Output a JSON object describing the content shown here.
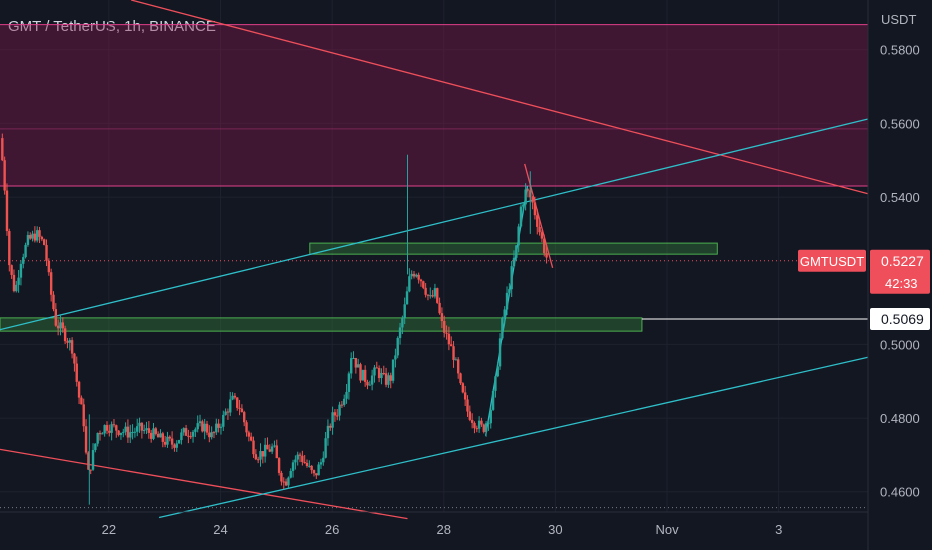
{
  "chart_data": {
    "type": "candlestick",
    "title": "GMT / TetherUS, 1h, BINANCE",
    "price_unit": "USDT",
    "y_ticks": [
      0.58,
      0.56,
      0.54,
      0.5,
      0.48,
      0.46
    ],
    "y_tick_labels": [
      "0.5800",
      "0.5600",
      "0.5400",
      "0.5000",
      "0.4800",
      "0.4600"
    ],
    "ylim": [
      0.4545,
      0.5935
    ],
    "x_tick_labels": [
      "22",
      "24",
      "26",
      "28",
      "30",
      "Nov",
      "3"
    ],
    "x_tick_days": [
      22,
      24,
      26,
      28,
      30,
      32,
      34
    ],
    "xlim_days": [
      20.05,
      35.6
    ],
    "symbol_label": "GMTUSDT",
    "last_price": 0.5227,
    "last_price_label": "0.5227",
    "countdown_label": "42:33",
    "level_price": 0.5069,
    "level_price_label": "0.5069",
    "supply_zone": {
      "top": 0.5868,
      "bottom": 0.543
    },
    "supply_mid_line": 0.5585,
    "resistance_box": {
      "from_day": 25.6,
      "to_day": 32.9,
      "top": 0.5275,
      "bottom": 0.5245
    },
    "support_box": {
      "from_day": 20.05,
      "to_day": 31.55,
      "top": 0.5072,
      "bottom": 0.5036
    },
    "dotted_levels": [
      0.5227,
      0.4557
    ],
    "trendlines": [
      {
        "color": "#ef4f5a",
        "from": [
          22.4,
          0.5935
        ],
        "to": [
          35.6,
          0.5409
        ]
      },
      {
        "color": "#ef4f5a",
        "from": [
          20.05,
          0.4715
        ],
        "to": [
          27.35,
          0.4527
        ]
      },
      {
        "color": "#2ebfc9",
        "from": [
          20.05,
          0.504
        ],
        "to": [
          35.6,
          0.5612
        ]
      },
      {
        "color": "#2ebfc9",
        "from": [
          22.9,
          0.453
        ],
        "to": [
          35.6,
          0.4965
        ]
      },
      {
        "color": "#2ebfc9",
        "from": [
          28.75,
          0.4752
        ],
        "to": [
          29.5,
          0.543
        ]
      },
      {
        "color": "#ef4f5a",
        "from": [
          29.45,
          0.549
        ],
        "to": [
          29.95,
          0.5208
        ]
      }
    ],
    "price_path": [
      [
        20.05,
        0.556
      ],
      [
        20.12,
        0.546
      ],
      [
        20.22,
        0.521
      ],
      [
        20.32,
        0.514
      ],
      [
        20.42,
        0.523
      ],
      [
        20.55,
        0.528
      ],
      [
        20.7,
        0.53
      ],
      [
        20.85,
        0.527
      ],
      [
        20.95,
        0.515
      ],
      [
        21.05,
        0.506
      ],
      [
        21.2,
        0.503
      ],
      [
        21.35,
        0.499
      ],
      [
        21.45,
        0.487
      ],
      [
        21.55,
        0.479
      ],
      [
        21.62,
        0.464
      ],
      [
        21.7,
        0.469
      ],
      [
        21.8,
        0.476
      ],
      [
        21.95,
        0.478
      ],
      [
        22.15,
        0.477
      ],
      [
        22.35,
        0.476
      ],
      [
        22.55,
        0.477
      ],
      [
        22.75,
        0.476
      ],
      [
        22.95,
        0.474
      ],
      [
        23.15,
        0.473
      ],
      [
        23.35,
        0.476
      ],
      [
        23.55,
        0.477
      ],
      [
        23.7,
        0.478
      ],
      [
        23.85,
        0.475
      ],
      [
        24.05,
        0.48
      ],
      [
        24.2,
        0.485
      ],
      [
        24.35,
        0.483
      ],
      [
        24.5,
        0.475
      ],
      [
        24.65,
        0.47
      ],
      [
        24.8,
        0.471
      ],
      [
        24.95,
        0.472
      ],
      [
        25.05,
        0.466
      ],
      [
        25.15,
        0.462
      ],
      [
        25.28,
        0.468
      ],
      [
        25.42,
        0.47
      ],
      [
        25.55,
        0.467
      ],
      [
        25.68,
        0.464
      ],
      [
        25.8,
        0.468
      ],
      [
        25.9,
        0.475
      ],
      [
        26.0,
        0.48
      ],
      [
        26.1,
        0.482
      ],
      [
        26.25,
        0.488
      ],
      [
        26.35,
        0.498
      ],
      [
        26.5,
        0.492
      ],
      [
        26.65,
        0.49
      ],
      [
        26.8,
        0.493
      ],
      [
        26.95,
        0.49
      ],
      [
        27.05,
        0.491
      ],
      [
        27.15,
        0.499
      ],
      [
        27.3,
        0.51
      ],
      [
        27.4,
        0.519
      ],
      [
        27.5,
        0.52
      ],
      [
        27.62,
        0.517
      ],
      [
        27.75,
        0.512
      ],
      [
        27.85,
        0.514
      ],
      [
        27.95,
        0.506
      ],
      [
        28.05,
        0.502
      ],
      [
        28.18,
        0.497
      ],
      [
        28.3,
        0.488
      ],
      [
        28.42,
        0.482
      ],
      [
        28.55,
        0.479
      ],
      [
        28.7,
        0.477
      ],
      [
        28.82,
        0.481
      ],
      [
        28.92,
        0.489
      ],
      [
        29.02,
        0.503
      ],
      [
        29.12,
        0.512
      ],
      [
        29.22,
        0.52
      ],
      [
        29.3,
        0.526
      ],
      [
        29.38,
        0.537
      ],
      [
        29.48,
        0.542
      ],
      [
        29.58,
        0.539
      ],
      [
        29.68,
        0.533
      ],
      [
        29.78,
        0.527
      ],
      [
        29.86,
        0.5227
      ]
    ]
  }
}
